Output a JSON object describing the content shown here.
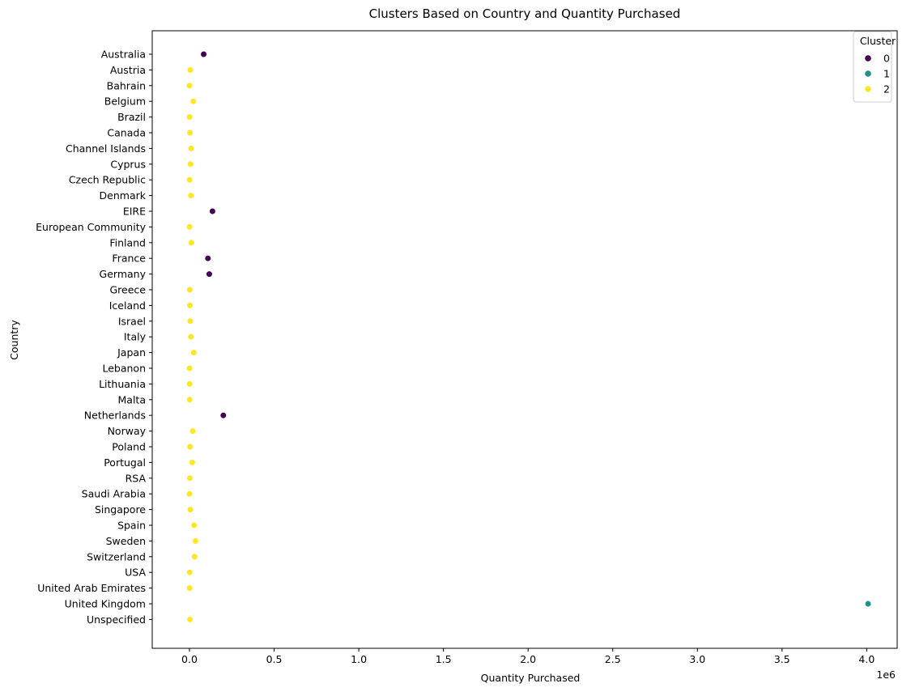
{
  "chart_data": {
    "type": "scatter",
    "title": "Clusters Based on Country and Quantity Purchased",
    "xlabel": "Quantity Purchased",
    "ylabel": "Country",
    "x_scale_note": "1e6",
    "xlim": [
      -220000,
      4180000
    ],
    "x_ticks": [
      0,
      0.5,
      1.0,
      1.5,
      2.0,
      2.5,
      3.0,
      3.5,
      4.0
    ],
    "x_tick_labels": [
      "0.0",
      "0.5",
      "1.0",
      "1.5",
      "2.0",
      "2.5",
      "3.0",
      "3.5",
      "4.0"
    ],
    "grid": false,
    "legend": {
      "title": "Cluster",
      "placement": "top-right",
      "entries": [
        {
          "label": "0",
          "color": "#440154"
        },
        {
          "label": "1",
          "color": "#21918c"
        },
        {
          "label": "2",
          "color": "#fde725"
        }
      ]
    },
    "categories": [
      "Australia",
      "Austria",
      "Bahrain",
      "Belgium",
      "Brazil",
      "Canada",
      "Channel Islands",
      "Cyprus",
      "Czech Republic",
      "Denmark",
      "EIRE",
      "European Community",
      "Finland",
      "France",
      "Germany",
      "Greece",
      "Iceland",
      "Israel",
      "Italy",
      "Japan",
      "Lebanon",
      "Lithuania",
      "Malta",
      "Netherlands",
      "Norway",
      "Poland",
      "Portugal",
      "RSA",
      "Saudi Arabia",
      "Singapore",
      "Spain",
      "Sweden",
      "Switzerland",
      "USA",
      "United Arab Emirates",
      "United Kingdom",
      "Unspecified"
    ],
    "points": [
      {
        "country": "Australia",
        "x": 84000,
        "cluster": "0"
      },
      {
        "country": "Austria",
        "x": 5000,
        "cluster": "2"
      },
      {
        "country": "Bahrain",
        "x": 300,
        "cluster": "2"
      },
      {
        "country": "Belgium",
        "x": 23000,
        "cluster": "2"
      },
      {
        "country": "Brazil",
        "x": 400,
        "cluster": "2"
      },
      {
        "country": "Canada",
        "x": 2800,
        "cluster": "2"
      },
      {
        "country": "Channel Islands",
        "x": 9500,
        "cluster": "2"
      },
      {
        "country": "Cyprus",
        "x": 6300,
        "cluster": "2"
      },
      {
        "country": "Czech Republic",
        "x": 600,
        "cluster": "2"
      },
      {
        "country": "Denmark",
        "x": 8200,
        "cluster": "2"
      },
      {
        "country": "EIRE",
        "x": 136000,
        "cluster": "0"
      },
      {
        "country": "European Community",
        "x": 500,
        "cluster": "2"
      },
      {
        "country": "Finland",
        "x": 10700,
        "cluster": "2"
      },
      {
        "country": "France",
        "x": 109000,
        "cluster": "0"
      },
      {
        "country": "Germany",
        "x": 117000,
        "cluster": "0"
      },
      {
        "country": "Greece",
        "x": 1500,
        "cluster": "2"
      },
      {
        "country": "Iceland",
        "x": 2500,
        "cluster": "2"
      },
      {
        "country": "Israel",
        "x": 4400,
        "cluster": "2"
      },
      {
        "country": "Italy",
        "x": 8000,
        "cluster": "2"
      },
      {
        "country": "Japan",
        "x": 25000,
        "cluster": "2"
      },
      {
        "country": "Lebanon",
        "x": 400,
        "cluster": "2"
      },
      {
        "country": "Lithuania",
        "x": 700,
        "cluster": "2"
      },
      {
        "country": "Malta",
        "x": 900,
        "cluster": "2"
      },
      {
        "country": "Netherlands",
        "x": 200000,
        "cluster": "0"
      },
      {
        "country": "Norway",
        "x": 19000,
        "cluster": "2"
      },
      {
        "country": "Poland",
        "x": 3700,
        "cluster": "2"
      },
      {
        "country": "Portugal",
        "x": 16000,
        "cluster": "2"
      },
      {
        "country": "RSA",
        "x": 2000,
        "cluster": "2"
      },
      {
        "country": "Saudi Arabia",
        "x": 75,
        "cluster": "2"
      },
      {
        "country": "Singapore",
        "x": 5200,
        "cluster": "2"
      },
      {
        "country": "Spain",
        "x": 26800,
        "cluster": "2"
      },
      {
        "country": "Sweden",
        "x": 35600,
        "cluster": "2"
      },
      {
        "country": "Switzerland",
        "x": 30300,
        "cluster": "2"
      },
      {
        "country": "USA",
        "x": 1000,
        "cluster": "2"
      },
      {
        "country": "United Arab Emirates",
        "x": 1000,
        "cluster": "2"
      },
      {
        "country": "United Kingdom",
        "x": 4008000,
        "cluster": "1"
      },
      {
        "country": "Unspecified",
        "x": 3300,
        "cluster": "2"
      }
    ]
  }
}
